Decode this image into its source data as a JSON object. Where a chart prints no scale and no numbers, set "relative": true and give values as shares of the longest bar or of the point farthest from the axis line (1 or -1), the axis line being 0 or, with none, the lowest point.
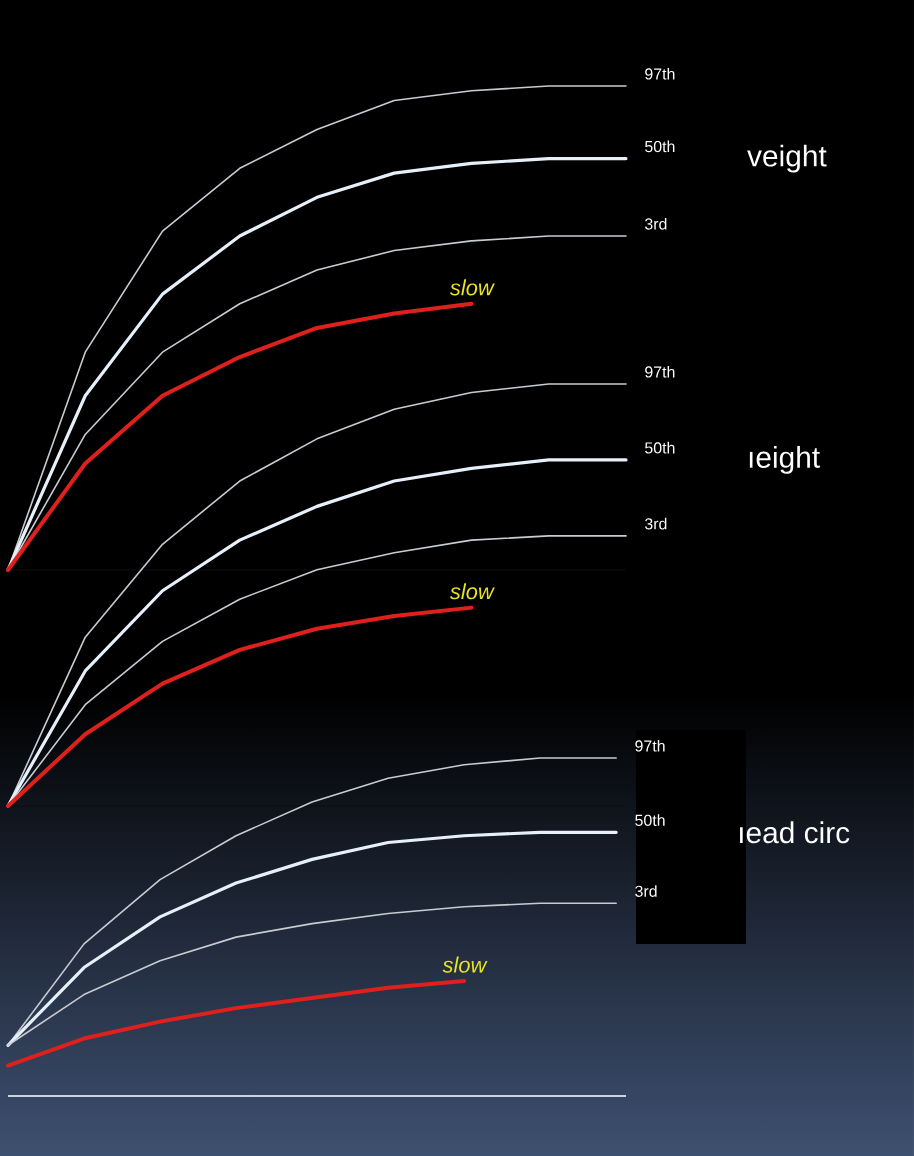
{
  "chart_data": [
    {
      "type": "line",
      "relative": true,
      "categories": [
        null,
        null,
        null,
        null,
        null,
        null,
        null,
        null,
        null
      ],
      "annotations": [
        "veight",
        "slow"
      ],
      "series": [
        {
          "name": "97th",
          "color": "#c8ccd2",
          "values": [
            0,
            0.45,
            0.7,
            0.83,
            0.91,
            0.97,
            0.99,
            1,
            1
          ]
        },
        {
          "name": "50th",
          "color": "#e6f0fa",
          "values": [
            0,
            0.36,
            0.57,
            0.69,
            0.77,
            0.82,
            0.84,
            0.85,
            0.85
          ]
        },
        {
          "name": "3rd",
          "color": "#c8ccd2",
          "values": [
            0,
            0.28,
            0.45,
            0.55,
            0.62,
            0.66,
            0.68,
            0.69,
            0.69
          ]
        },
        {
          "color": "#e0201c",
          "values": [
            0,
            0.22,
            0.36,
            0.44,
            0.5,
            0.53,
            0.55,
            null,
            null
          ]
        }
      ]
    },
    {
      "type": "line",
      "relative": true,
      "categories": [
        null,
        null,
        null,
        null,
        null,
        null,
        null,
        null,
        null
      ],
      "annotations": [
        "ıeight",
        "slow"
      ],
      "series": [
        {
          "name": "97th",
          "color": "#c8ccd2",
          "values": [
            0,
            0.4,
            0.62,
            0.77,
            0.87,
            0.94,
            0.98,
            1,
            1
          ]
        },
        {
          "name": "50th",
          "color": "#e6f0fa",
          "values": [
            0,
            0.32,
            0.51,
            0.63,
            0.71,
            0.77,
            0.8,
            0.82,
            0.82
          ]
        },
        {
          "name": "3rd",
          "color": "#c8ccd2",
          "values": [
            0,
            0.24,
            0.39,
            0.49,
            0.56,
            0.6,
            0.63,
            0.64,
            0.64
          ]
        },
        {
          "color": "#e0201c",
          "values": [
            0,
            0.17,
            0.29,
            0.37,
            0.42,
            0.45,
            0.47,
            null,
            null
          ]
        }
      ]
    },
    {
      "type": "line",
      "relative": true,
      "categories": [
        null,
        null,
        null,
        null,
        null,
        null,
        null,
        null,
        null
      ],
      "annotations": [
        "ıead circ",
        "slow"
      ],
      "series": [
        {
          "name": "97th",
          "color": "#c8ccd2",
          "values": [
            0.15,
            0.45,
            0.64,
            0.77,
            0.87,
            0.94,
            0.98,
            1,
            1
          ]
        },
        {
          "name": "50th",
          "color": "#e6f0fa",
          "values": [
            0.15,
            0.38,
            0.53,
            0.63,
            0.7,
            0.75,
            0.77,
            0.78,
            0.78
          ]
        },
        {
          "name": "3rd",
          "color": "#c8ccd2",
          "values": [
            0.15,
            0.3,
            0.4,
            0.47,
            0.51,
            0.54,
            0.56,
            0.57,
            0.57
          ]
        },
        {
          "color": "#e0201c",
          "values": [
            0.09,
            0.17,
            0.22,
            0.26,
            0.29,
            0.32,
            0.34,
            null,
            null
          ]
        }
      ]
    }
  ]
}
